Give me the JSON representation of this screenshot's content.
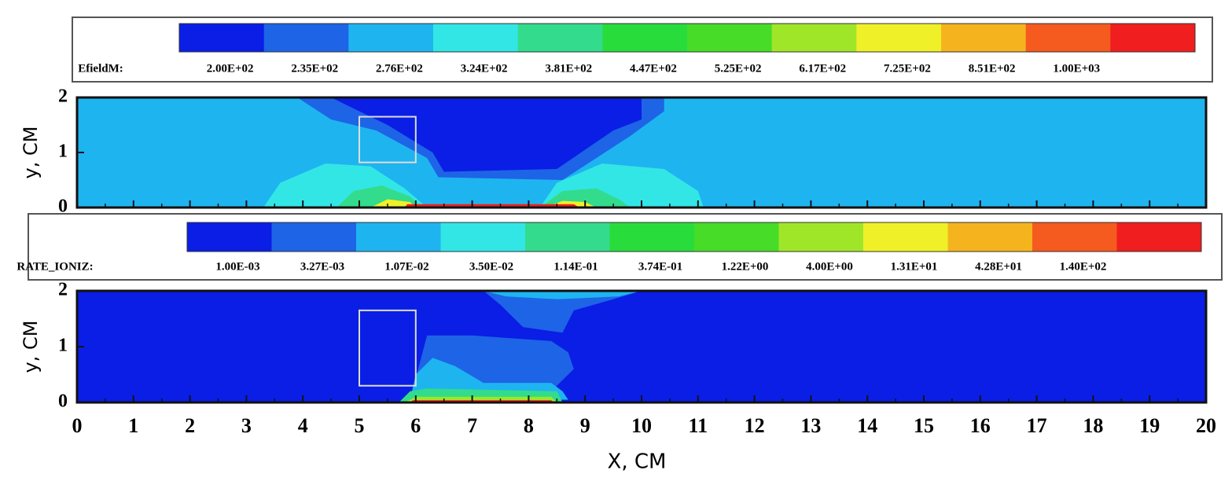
{
  "chart_data": [
    {
      "type": "contour",
      "colorbar": {
        "label": "EfieldM:",
        "levels": [
          {
            "value": 200,
            "label": "2.00E+02"
          },
          {
            "value": 235,
            "label": "2.35E+02"
          },
          {
            "value": 276,
            "label": "2.76E+02"
          },
          {
            "value": 324,
            "label": "3.24E+02"
          },
          {
            "value": 381,
            "label": "3.81E+02"
          },
          {
            "value": 447,
            "label": "4.47E+02"
          },
          {
            "value": 525,
            "label": "5.25E+02"
          },
          {
            "value": 617,
            "label": "6.17E+02"
          },
          {
            "value": 725,
            "label": "7.25E+02"
          },
          {
            "value": 851,
            "label": "8.51E+02"
          },
          {
            "value": 1000,
            "label": "1.00E+03"
          }
        ],
        "colors": [
          "#0a1ee6",
          "#1e64e6",
          "#1eb4f0",
          "#32e6e6",
          "#32dc8c",
          "#28dc3c",
          "#46dc28",
          "#a0e628",
          "#f0f028",
          "#f5b41e",
          "#f55a1e",
          "#f01e1e"
        ]
      },
      "ylabel": "y, CM",
      "xlim": [
        0,
        20
      ],
      "ylim": [
        0,
        2
      ],
      "yticks": [
        0,
        1,
        2
      ]
    },
    {
      "type": "contour",
      "colorbar": {
        "label": "RATE_IONIZ:",
        "levels": [
          {
            "value": 0.001,
            "label": "1.00E-03"
          },
          {
            "value": 0.00327,
            "label": "3.27E-03"
          },
          {
            "value": 0.0107,
            "label": "1.07E-02"
          },
          {
            "value": 0.035,
            "label": "3.50E-02"
          },
          {
            "value": 0.114,
            "label": "1.14E-01"
          },
          {
            "value": 0.374,
            "label": "3.74E-01"
          },
          {
            "value": 1.22,
            "label": "1.22E+00"
          },
          {
            "value": 4.0,
            "label": "4.00E+00"
          },
          {
            "value": 13.1,
            "label": "1.31E+01"
          },
          {
            "value": 42.8,
            "label": "4.28E+01"
          },
          {
            "value": 140,
            "label": "1.40E+02"
          }
        ],
        "colors": [
          "#0a1ee6",
          "#1e64e6",
          "#1eb4f0",
          "#32e6e6",
          "#32dc8c",
          "#28dc3c",
          "#46dc28",
          "#a0e628",
          "#f0f028",
          "#f5b41e",
          "#f55a1e",
          "#f01e1e"
        ]
      },
      "ylabel": "y, CM",
      "xlabel": "X, CM",
      "xlim": [
        0,
        20
      ],
      "ylim": [
        0,
        2
      ],
      "yticks": [
        0,
        1,
        2
      ],
      "xticks": [
        0,
        1,
        2,
        3,
        4,
        5,
        6,
        7,
        8,
        9,
        10,
        11,
        12,
        13,
        14,
        15,
        16,
        17,
        18,
        19,
        20
      ]
    }
  ]
}
